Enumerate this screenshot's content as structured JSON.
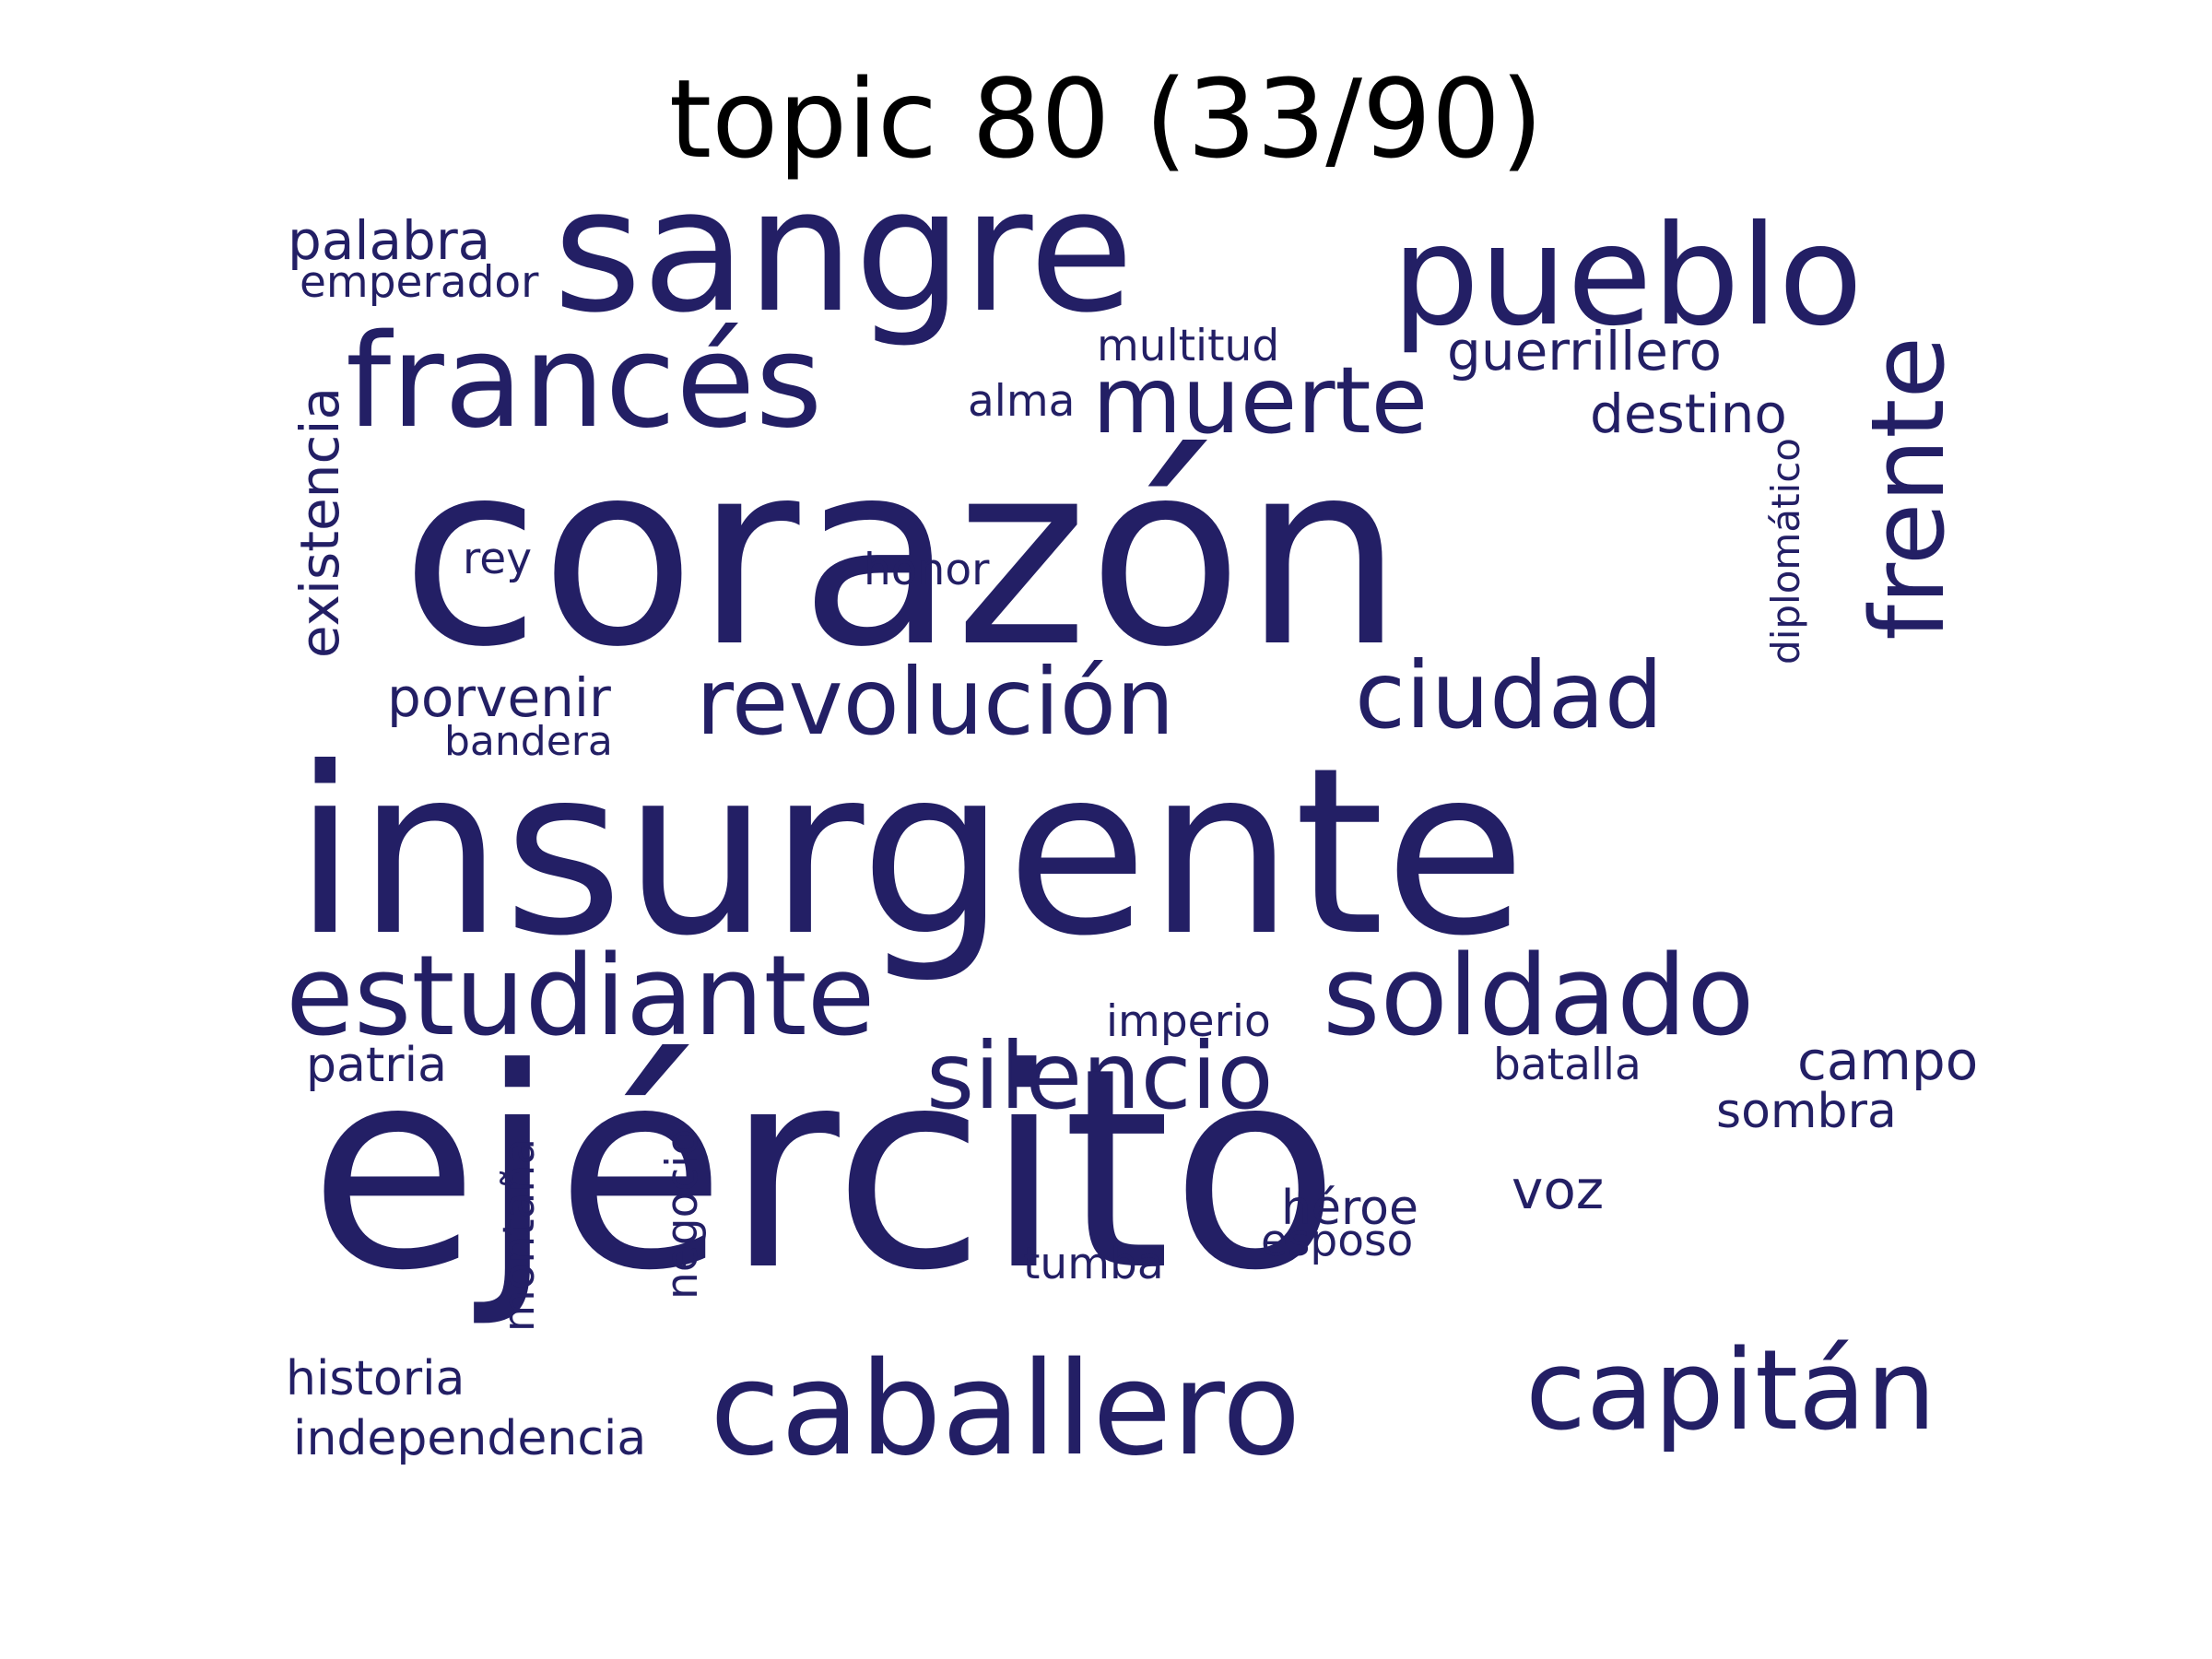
{
  "title": "topic 80 (33/90)",
  "word_color": "#231f65",
  "words": {
    "sangre": "sangre",
    "pueblo": "pueblo",
    "palabra": "palabra",
    "emperador": "emperador",
    "frances": "francés",
    "multitud": "multitud",
    "muerte": "muerte",
    "guerrillero": "guerrillero",
    "alma": "alma",
    "destino": "destino",
    "frente": "frente",
    "existencia": "existencia",
    "corazon": "corazón",
    "rey": "rey",
    "honor": "honor",
    "diplomatico": "diplomático",
    "porvenir": "porvenir",
    "revolucion": "revolución",
    "ciudad": "ciudad",
    "bandera": "bandera",
    "insurgente": "insurgente",
    "estudiante": "estudiante",
    "soldado": "soldado",
    "imperio": "imperio",
    "patria": "patria",
    "silencio": "silencio",
    "batalla": "batalla",
    "campo": "campo",
    "sombra": "sombra",
    "ejercito": "ejército",
    "voz": "voz",
    "montana": "montaña",
    "negocio": "negocio",
    "heroe": "héroe",
    "esposo": "esposo",
    "tumba": "tumba",
    "historia": "historia",
    "caballero": "caballero",
    "capitan": "capitán",
    "independencia": "independencia"
  }
}
